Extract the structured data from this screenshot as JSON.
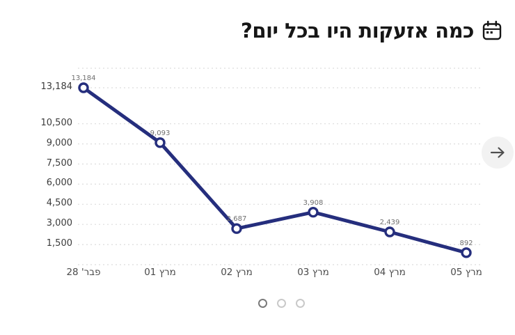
{
  "header": {
    "title": "כמה אזעקות היו בכל יום?",
    "icon": "calendar"
  },
  "carousel": {
    "dots": [
      "active",
      "inactive",
      "inactive"
    ]
  },
  "chart_data": {
    "type": "line",
    "title": "כמה אזעקות היו בכל יום?",
    "categories": [
      "פבר' 28",
      "מרץ 01",
      "מרץ 02",
      "מרץ 03",
      "מרץ 04",
      "מרץ 05"
    ],
    "values": [
      13184,
      9093,
      2687,
      3908,
      2439,
      892
    ],
    "point_labels": [
      "13,184",
      "9,093",
      "2,687",
      "3,908",
      "2,439",
      "892"
    ],
    "y_ticks": [
      {
        "value": 13184,
        "label": "13,184"
      },
      {
        "value": 10500,
        "label": "10,500"
      },
      {
        "value": 9000,
        "label": "9,000"
      },
      {
        "value": 7500,
        "label": "7,500"
      },
      {
        "value": 6000,
        "label": "6,000"
      },
      {
        "value": 4500,
        "label": "4,500"
      },
      {
        "value": 3000,
        "label": "3,000"
      },
      {
        "value": 1500,
        "label": "1,500"
      }
    ],
    "ylim": [
      0,
      14700
    ],
    "grid": "dashed-horizontal",
    "legend": "none",
    "colors": {
      "line": "#252e7d",
      "point_fill": "#ffffff",
      "grid": "#dcdcdc",
      "point_label": "#6f6f6f",
      "y_label": "#3b3b3b",
      "x_label": "#4a4a4a"
    }
  }
}
